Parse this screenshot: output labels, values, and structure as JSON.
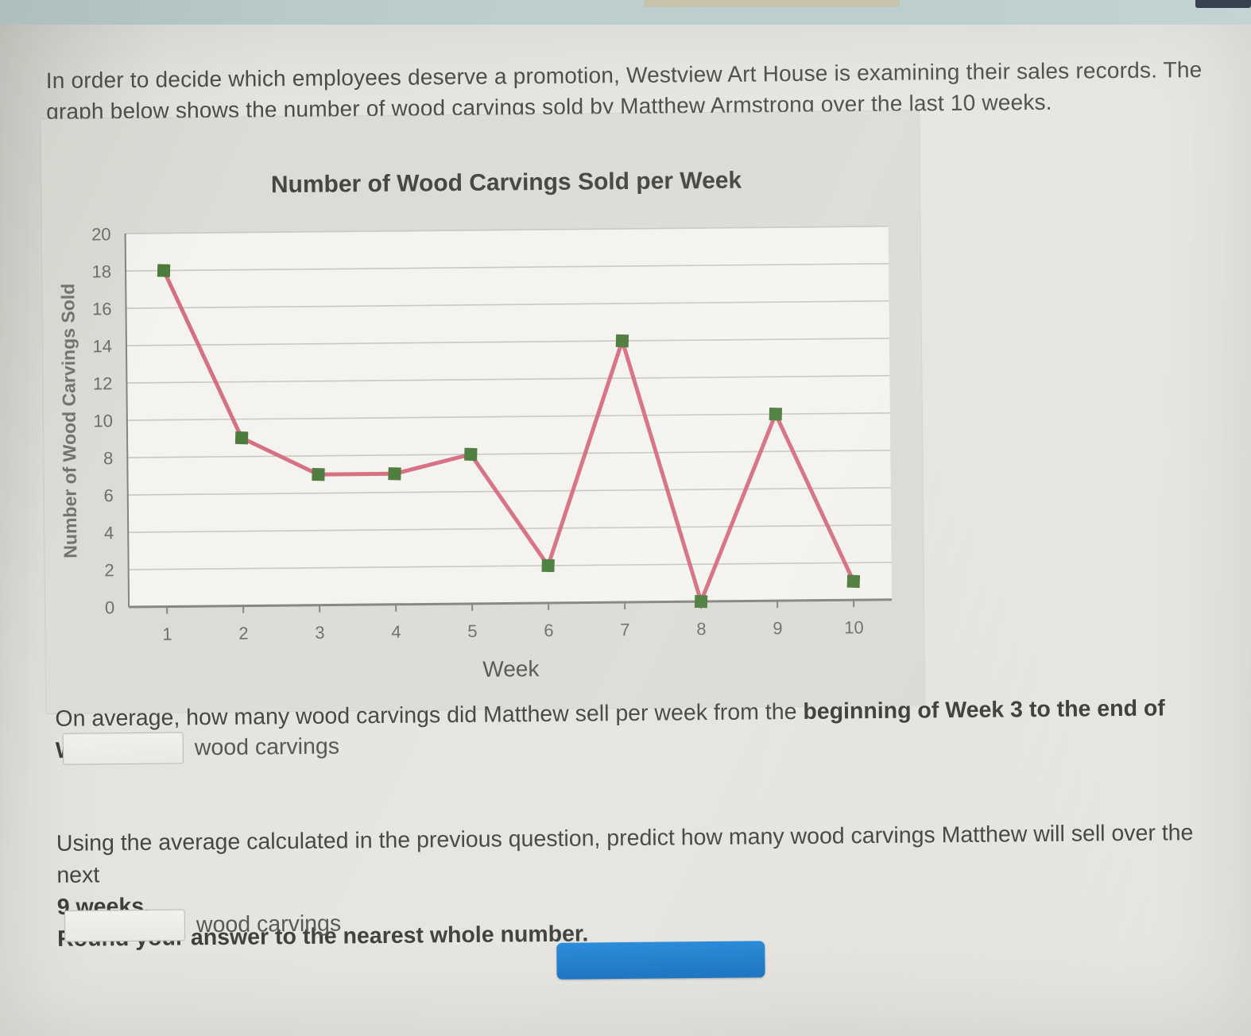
{
  "page": {
    "intro": "In order to decide which employees deserve a promotion, Westview Art House is examining their sales records. The graph below shows the number of wood carvings sold by Matthew Armstrong over the last 10 weeks."
  },
  "chart_data": {
    "type": "line",
    "title": "Number of Wood Carvings Sold per Week",
    "xlabel": "Week",
    "ylabel": "Number of Wood Carvings Sold",
    "x": [
      1,
      2,
      3,
      4,
      5,
      6,
      7,
      8,
      9,
      10
    ],
    "values": [
      18,
      9,
      7,
      7,
      8,
      2,
      14,
      0,
      10,
      1
    ],
    "ylim": [
      0,
      20
    ],
    "ytick_step": 2,
    "grid": true,
    "legend": "none",
    "line_color": "#d4677a",
    "marker_color": "#4c7b3b",
    "plot_bg": "#f4f3ef",
    "grid_color": "#c8c7c1",
    "axis_color": "#85847e",
    "tick_label_color": "#6e6d68",
    "title_color": "#454442"
  },
  "question1": {
    "text_normal": "On average, how many wood carvings did Matthew sell per week from the ",
    "text_bold": "beginning of Week 3 to the end of Week 10?",
    "input_value": "",
    "unit_label": "wood carvings"
  },
  "question2": {
    "line1_normal": "Using the average calculated in the previous question, predict how many wood carvings Matthew will sell over the next ",
    "line1_bold": "9 weeks.",
    "line2_bold": "Round your answer to the nearest whole number.",
    "input_value": "",
    "unit_label": "wood carvings"
  }
}
